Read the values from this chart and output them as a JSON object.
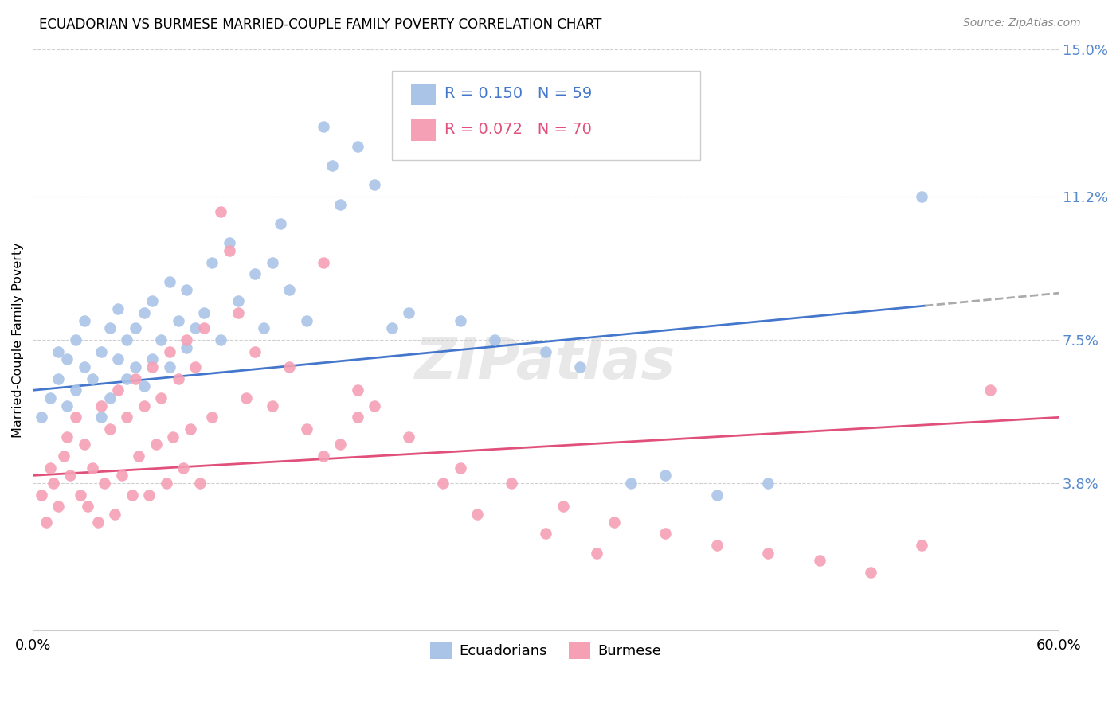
{
  "title": "ECUADORIAN VS BURMESE MARRIED-COUPLE FAMILY POVERTY CORRELATION CHART",
  "source": "Source: ZipAtlas.com",
  "ylabel": "Married-Couple Family Poverty",
  "x_min": 0.0,
  "x_max": 0.6,
  "y_min": 0.0,
  "y_max": 0.15,
  "x_tick_labels": [
    "0.0%",
    "60.0%"
  ],
  "y_ticks_right": [
    0.15,
    0.112,
    0.075,
    0.038
  ],
  "y_tick_labels_right": [
    "15.0%",
    "11.2%",
    "7.5%",
    "3.8%"
  ],
  "grid_color": "#d0d0d0",
  "background_color": "#ffffff",
  "ecuadorian_color": "#aac4e8",
  "burmese_color": "#f5a0b5",
  "trend_color_ecuadorian_solid": "#4477cc",
  "trend_color_ecuadorian_dashed": "#aaaaaa",
  "trend_color_burmese": "#e0507a",
  "legend_ecuadorians": "Ecuadorians",
  "legend_burmese": "Burmese",
  "watermark": "ZIPatlas",
  "ecuadorian_x": [
    0.005,
    0.01,
    0.015,
    0.015,
    0.02,
    0.02,
    0.025,
    0.025,
    0.03,
    0.03,
    0.035,
    0.04,
    0.04,
    0.045,
    0.045,
    0.05,
    0.05,
    0.055,
    0.055,
    0.06,
    0.06,
    0.065,
    0.065,
    0.07,
    0.07,
    0.075,
    0.08,
    0.08,
    0.085,
    0.09,
    0.09,
    0.095,
    0.1,
    0.105,
    0.11,
    0.115,
    0.12,
    0.13,
    0.135,
    0.14,
    0.145,
    0.15,
    0.16,
    0.17,
    0.175,
    0.18,
    0.19,
    0.2,
    0.21,
    0.22,
    0.25,
    0.27,
    0.3,
    0.32,
    0.35,
    0.37,
    0.4,
    0.43,
    0.52
  ],
  "ecuadorian_y": [
    0.055,
    0.06,
    0.065,
    0.072,
    0.058,
    0.07,
    0.062,
    0.075,
    0.068,
    0.08,
    0.065,
    0.055,
    0.072,
    0.06,
    0.078,
    0.07,
    0.083,
    0.065,
    0.075,
    0.068,
    0.078,
    0.063,
    0.082,
    0.07,
    0.085,
    0.075,
    0.068,
    0.09,
    0.08,
    0.073,
    0.088,
    0.078,
    0.082,
    0.095,
    0.075,
    0.1,
    0.085,
    0.092,
    0.078,
    0.095,
    0.105,
    0.088,
    0.08,
    0.13,
    0.12,
    0.11,
    0.125,
    0.115,
    0.078,
    0.082,
    0.08,
    0.075,
    0.072,
    0.068,
    0.038,
    0.04,
    0.035,
    0.038,
    0.112
  ],
  "burmese_x": [
    0.005,
    0.008,
    0.01,
    0.012,
    0.015,
    0.018,
    0.02,
    0.022,
    0.025,
    0.028,
    0.03,
    0.032,
    0.035,
    0.038,
    0.04,
    0.042,
    0.045,
    0.048,
    0.05,
    0.052,
    0.055,
    0.058,
    0.06,
    0.062,
    0.065,
    0.068,
    0.07,
    0.072,
    0.075,
    0.078,
    0.08,
    0.082,
    0.085,
    0.088,
    0.09,
    0.092,
    0.095,
    0.098,
    0.1,
    0.105,
    0.11,
    0.115,
    0.12,
    0.125,
    0.13,
    0.14,
    0.15,
    0.16,
    0.17,
    0.18,
    0.19,
    0.2,
    0.22,
    0.25,
    0.28,
    0.31,
    0.34,
    0.37,
    0.4,
    0.43,
    0.46,
    0.49,
    0.52,
    0.17,
    0.19,
    0.24,
    0.26,
    0.3,
    0.33,
    0.56
  ],
  "burmese_y": [
    0.035,
    0.028,
    0.042,
    0.038,
    0.032,
    0.045,
    0.05,
    0.04,
    0.055,
    0.035,
    0.048,
    0.032,
    0.042,
    0.028,
    0.058,
    0.038,
    0.052,
    0.03,
    0.062,
    0.04,
    0.055,
    0.035,
    0.065,
    0.045,
    0.058,
    0.035,
    0.068,
    0.048,
    0.06,
    0.038,
    0.072,
    0.05,
    0.065,
    0.042,
    0.075,
    0.052,
    0.068,
    0.038,
    0.078,
    0.055,
    0.108,
    0.098,
    0.082,
    0.06,
    0.072,
    0.058,
    0.068,
    0.052,
    0.095,
    0.048,
    0.062,
    0.058,
    0.05,
    0.042,
    0.038,
    0.032,
    0.028,
    0.025,
    0.022,
    0.02,
    0.018,
    0.015,
    0.022,
    0.045,
    0.055,
    0.038,
    0.03,
    0.025,
    0.02,
    0.062
  ]
}
